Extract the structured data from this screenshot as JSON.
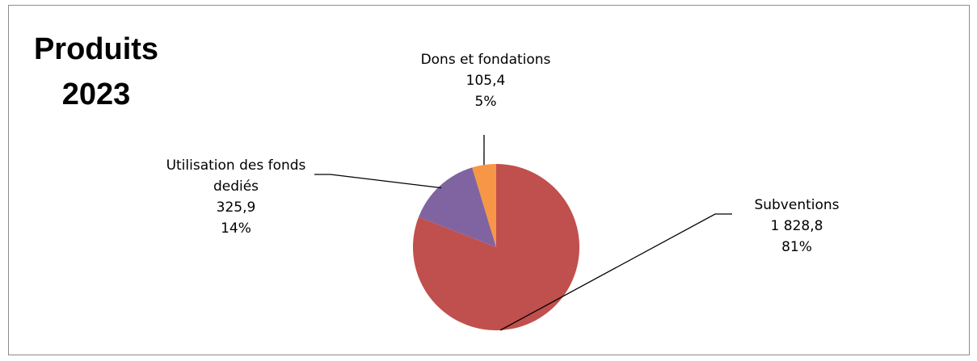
{
  "chart_data": {
    "type": "pie",
    "title": [
      "Produits",
      "2023"
    ],
    "slices": [
      {
        "name": "Subventions",
        "value_label": "1 828,8",
        "percent_label": "81%",
        "value": 1828.8,
        "color": "#c0504d"
      },
      {
        "name": "Utilisation des fonds dediés",
        "value_label": "325,9",
        "percent_label": "14%",
        "value": 325.9,
        "color": "#8064a2"
      },
      {
        "name": "Dons et fondations",
        "value_label": "105,4",
        "percent_label": "5%",
        "value": 105.4,
        "color": "#f79646"
      }
    ],
    "legend": "none"
  }
}
